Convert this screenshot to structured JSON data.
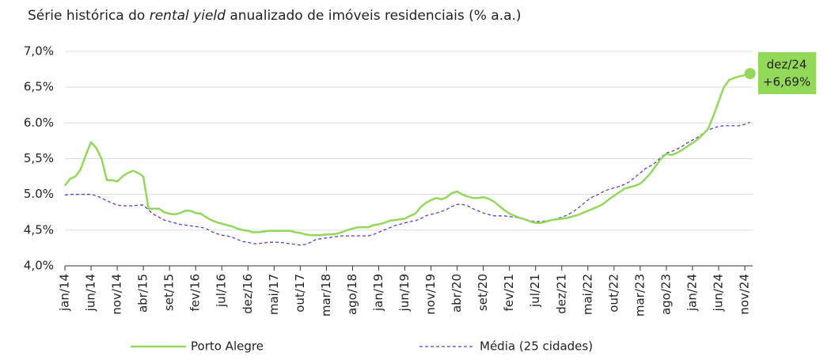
{
  "chart_data": {
    "type": "line",
    "title": [
      "Série histórica do ",
      "rental yield",
      " anualizado de imóveis residenciais (% a.a.)"
    ],
    "categories": [
      "jan/14",
      null,
      null,
      null,
      null,
      "jun/14",
      null,
      null,
      null,
      null,
      "nov/14",
      null,
      null,
      null,
      null,
      "abr/15",
      null,
      null,
      null,
      null,
      "set/15",
      null,
      null,
      null,
      null,
      "fev/16",
      null,
      null,
      null,
      null,
      "jul/16",
      null,
      null,
      null,
      null,
      "dez/16",
      null,
      null,
      null,
      null,
      "mai/17",
      null,
      null,
      null,
      null,
      "out/17",
      null,
      null,
      null,
      null,
      "mar/18",
      null,
      null,
      null,
      null,
      "ago/18",
      null,
      null,
      null,
      null,
      "jan/19",
      null,
      null,
      null,
      null,
      "jun/19",
      null,
      null,
      null,
      null,
      "nov/19",
      null,
      null,
      null,
      null,
      "abr/20",
      null,
      null,
      null,
      null,
      "set/20",
      null,
      null,
      null,
      null,
      "fev/21",
      null,
      null,
      null,
      null,
      "jul/21",
      null,
      null,
      null,
      null,
      "dez/21",
      null,
      null,
      null,
      null,
      "mai/22",
      null,
      null,
      null,
      null,
      "out/22",
      null,
      null,
      null,
      null,
      "mar/23",
      null,
      null,
      null,
      null,
      "ago/23",
      null,
      null,
      null,
      null,
      "jan/24",
      null,
      null,
      null,
      null,
      "jun/24",
      null,
      null,
      null,
      null,
      "nov/24",
      null
    ],
    "series": [
      {
        "name": "Porto Alegre",
        "color": "#92d95a",
        "dash": false,
        "values": [
          5.12,
          5.22,
          5.25,
          5.35,
          5.55,
          5.73,
          5.65,
          5.5,
          5.2,
          5.2,
          5.18,
          5.25,
          5.3,
          5.33,
          5.3,
          5.25,
          4.8,
          4.8,
          4.8,
          4.75,
          4.73,
          4.72,
          4.74,
          4.77,
          4.77,
          4.74,
          4.73,
          4.68,
          4.64,
          4.61,
          4.59,
          4.57,
          4.55,
          4.52,
          4.5,
          4.49,
          4.47,
          4.47,
          4.48,
          4.49,
          4.49,
          4.49,
          4.49,
          4.49,
          4.47,
          4.46,
          4.44,
          4.43,
          4.43,
          4.43,
          4.44,
          4.44,
          4.45,
          4.47,
          4.5,
          4.52,
          4.54,
          4.54,
          4.54,
          4.57,
          4.58,
          4.6,
          4.63,
          4.64,
          4.65,
          4.66,
          4.7,
          4.73,
          4.82,
          4.88,
          4.92,
          4.95,
          4.93,
          4.96,
          5.02,
          5.04,
          5.0,
          4.97,
          4.95,
          4.95,
          4.96,
          4.94,
          4.9,
          4.84,
          4.78,
          4.73,
          4.7,
          4.67,
          4.65,
          4.62,
          4.6,
          4.6,
          4.62,
          4.64,
          4.65,
          4.66,
          4.67,
          4.69,
          4.71,
          4.74,
          4.77,
          4.8,
          4.83,
          4.87,
          4.93,
          4.98,
          5.03,
          5.08,
          5.1,
          5.12,
          5.15,
          5.22,
          5.3,
          5.4,
          5.5,
          5.57,
          5.55,
          5.58,
          5.62,
          5.67,
          5.72,
          5.77,
          5.84,
          5.92,
          6.1,
          6.3,
          6.5,
          6.6,
          6.63,
          6.65,
          6.67,
          6.69
        ]
      },
      {
        "name": "Média (25 cidades)",
        "color": "#5a3fd6",
        "dash": true,
        "values": [
          4.99,
          5.0,
          5.0,
          5.0,
          5.0,
          5.0,
          4.98,
          4.95,
          4.91,
          4.88,
          4.85,
          4.84,
          4.84,
          4.84,
          4.85,
          4.85,
          4.78,
          4.72,
          4.68,
          4.64,
          4.62,
          4.6,
          4.58,
          4.57,
          4.56,
          4.55,
          4.54,
          4.52,
          4.48,
          4.45,
          4.43,
          4.42,
          4.4,
          4.37,
          4.34,
          4.33,
          4.31,
          4.31,
          4.32,
          4.33,
          4.33,
          4.33,
          4.32,
          4.31,
          4.3,
          4.29,
          4.3,
          4.33,
          4.37,
          4.38,
          4.39,
          4.4,
          4.41,
          4.42,
          4.42,
          4.42,
          4.42,
          4.42,
          4.42,
          4.44,
          4.47,
          4.5,
          4.53,
          4.56,
          4.58,
          4.6,
          4.62,
          4.63,
          4.66,
          4.7,
          4.72,
          4.74,
          4.76,
          4.79,
          4.83,
          4.86,
          4.86,
          4.84,
          4.8,
          4.77,
          4.74,
          4.72,
          4.7,
          4.7,
          4.7,
          4.69,
          4.68,
          4.67,
          4.65,
          4.63,
          4.62,
          4.62,
          4.63,
          4.64,
          4.66,
          4.68,
          4.71,
          4.75,
          4.8,
          4.86,
          4.92,
          4.97,
          5.0,
          5.04,
          5.07,
          5.09,
          5.11,
          5.14,
          5.18,
          5.24,
          5.3,
          5.36,
          5.4,
          5.45,
          5.52,
          5.58,
          5.6,
          5.63,
          5.67,
          5.72,
          5.76,
          5.8,
          5.85,
          5.9,
          5.93,
          5.95,
          5.96,
          5.96,
          5.96,
          5.96,
          5.98,
          6.01
        ]
      }
    ],
    "ylim": [
      4.0,
      7.0
    ],
    "yticks": [
      {
        "value": 4.0,
        "label": "4,0%"
      },
      {
        "value": 4.5,
        "label": "4,5%"
      },
      {
        "value": 5.0,
        "label": "5.0%"
      },
      {
        "value": 5.5,
        "label": "5,5%"
      },
      {
        "value": 6.0,
        "label": "6.0%"
      },
      {
        "value": 6.5,
        "label": "6,5%"
      },
      {
        "value": 7.0,
        "label": "7,0%"
      }
    ],
    "grid": true,
    "annotation": [
      "dez/24",
      "+6,69%"
    ]
  }
}
